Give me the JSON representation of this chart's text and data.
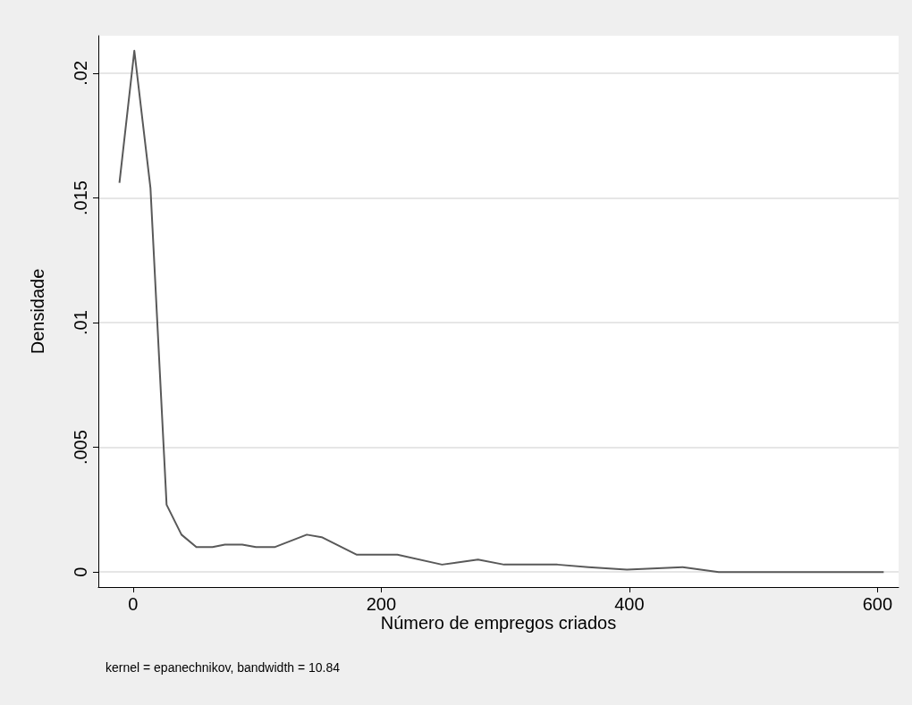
{
  "chart_data": {
    "type": "line",
    "xlabel": "Número de empregos criados",
    "ylabel": "Densidade",
    "annotations": [
      "kernel = epanechnikov, bandwidth = 10.84"
    ],
    "x": [
      -11,
      1,
      14,
      27,
      39,
      51,
      64,
      74,
      88,
      99,
      114,
      140,
      152,
      180,
      204,
      213,
      249,
      278,
      299,
      342,
      367,
      398,
      443,
      472,
      518,
      544,
      580,
      605
    ],
    "series": [
      {
        "color": "#595959",
        "values": [
          0.0156,
          0.0209,
          0.0154,
          0.0027,
          0.0015,
          0.001,
          0.001,
          0.0011,
          0.0011,
          0.001,
          0.001,
          0.0015,
          0.0014,
          0.0007,
          0.0007,
          0.0007,
          0.0003,
          0.0005,
          0.0003,
          0.0003,
          0.0002,
          0.0001,
          0.0002,
          0,
          0,
          0,
          0,
          0
        ]
      }
    ],
    "xlim": [
      -28,
      617
    ],
    "ylim": [
      -0.0006,
      0.0215
    ],
    "xticks": [
      0,
      200,
      400,
      600
    ],
    "yticks": [
      {
        "value": 0,
        "label": "0"
      },
      {
        "value": 0.005,
        "label": ".005"
      },
      {
        "value": 0.01,
        "label": ".01"
      },
      {
        "value": 0.015,
        "label": ".015"
      },
      {
        "value": 0.02,
        "label": ".02"
      }
    ],
    "grid": "y",
    "marker": "none",
    "line_style": "solid"
  }
}
